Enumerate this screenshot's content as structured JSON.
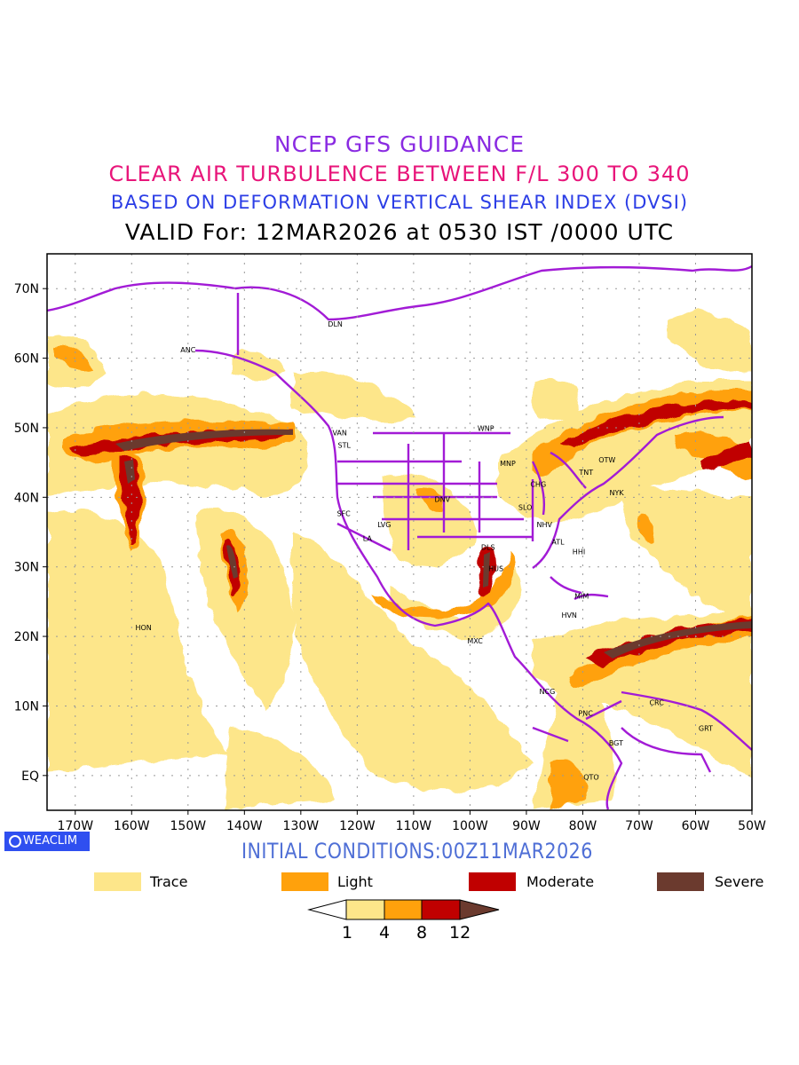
{
  "titles": {
    "line1": "NCEP GFS GUIDANCE",
    "line2": "CLEAR AIR TURBULENCE BETWEEN F/L 300 TO 340",
    "line3": "BASED ON DEFORMATION VERTICAL SHEAR INDEX (DVSI)",
    "line4": "VALID For: 12MAR2026 at 0530 IST /0000 UTC"
  },
  "colors": {
    "title1": "#8a2be2",
    "title2": "#e8157a",
    "title3": "#2c3ee6",
    "init": "#4f6fd6",
    "badge": "#2f4ff0",
    "coast": "#a21bd6",
    "trace": "#fde68a",
    "light": "#ffa10c",
    "moderate": "#c00000",
    "severe": "#6b3a2e"
  },
  "map": {
    "lat_labels": [
      "70N",
      "60N",
      "50N",
      "40N",
      "30N",
      "20N",
      "10N",
      "EQ"
    ],
    "lat_values": [
      70,
      60,
      50,
      40,
      30,
      20,
      10,
      0
    ],
    "lon_labels": [
      "170W",
      "160W",
      "150W",
      "140W",
      "130W",
      "120W",
      "110W",
      "100W",
      "90W",
      "80W",
      "70W",
      "60W",
      "50W"
    ],
    "lon_values": [
      -170,
      -160,
      -150,
      -140,
      -130,
      -120,
      -110,
      -100,
      -90,
      -80,
      -70,
      -60,
      -50
    ],
    "lon_range": [
      -175,
      -50
    ],
    "lat_range": [
      -5,
      75
    ],
    "grid": true,
    "stations": [
      {
        "code": "DLN",
        "lon": -123.9,
        "lat": 64.9
      },
      {
        "code": "ANC",
        "lon": -150,
        "lat": 61.2
      },
      {
        "code": "VAN",
        "lon": -123.1,
        "lat": 49.3
      },
      {
        "code": "STL",
        "lon": -122.3,
        "lat": 47.5
      },
      {
        "code": "WNP",
        "lon": -97.2,
        "lat": 49.9
      },
      {
        "code": "MNP",
        "lon": -93.3,
        "lat": 44.9
      },
      {
        "code": "TNT",
        "lon": -79.4,
        "lat": 43.6
      },
      {
        "code": "OTW",
        "lon": -75.7,
        "lat": 45.4
      },
      {
        "code": "CHG",
        "lon": -87.9,
        "lat": 41.9
      },
      {
        "code": "NYK",
        "lon": -74,
        "lat": 40.7
      },
      {
        "code": "DNV",
        "lon": -104.9,
        "lat": 39.7
      },
      {
        "code": "SFC",
        "lon": -122.4,
        "lat": 37.7
      },
      {
        "code": "LVG",
        "lon": -115.2,
        "lat": 36.1
      },
      {
        "code": "SLO",
        "lon": -90.2,
        "lat": 38.6
      },
      {
        "code": "NHV",
        "lon": -86.8,
        "lat": 36.1
      },
      {
        "code": "LA",
        "lon": -118.2,
        "lat": 34.1
      },
      {
        "code": "ATL",
        "lon": -84.4,
        "lat": 33.6
      },
      {
        "code": "DLS",
        "lon": -96.8,
        "lat": 32.8
      },
      {
        "code": "HHI",
        "lon": -80.7,
        "lat": 32.2
      },
      {
        "code": "HUS",
        "lon": -95.4,
        "lat": 29.8
      },
      {
        "code": "MIM",
        "lon": -80.2,
        "lat": 25.8
      },
      {
        "code": "HVN",
        "lon": -82.4,
        "lat": 23.1
      },
      {
        "code": "HON",
        "lon": -157.9,
        "lat": 21.3
      },
      {
        "code": "MXC",
        "lon": -99.1,
        "lat": 19.4
      },
      {
        "code": "NCG",
        "lon": -86.3,
        "lat": 12.1
      },
      {
        "code": "CRC",
        "lon": -66.9,
        "lat": 10.5
      },
      {
        "code": "PNC",
        "lon": -79.5,
        "lat": 9
      },
      {
        "code": "GRT",
        "lon": -58.2,
        "lat": 6.8
      },
      {
        "code": "BGT",
        "lon": -74.1,
        "lat": 4.7
      },
      {
        "code": "QTO",
        "lon": -78.5,
        "lat": -0.2
      }
    ]
  },
  "badge": {
    "label": "WEACLIM",
    "icon": "ring-logo-icon"
  },
  "initial": "INITIAL CONDITIONS:00Z11MAR2026",
  "legend": [
    {
      "label": "Trace",
      "color": "#fde68a"
    },
    {
      "label": "Light",
      "color": "#ffa10c"
    },
    {
      "label": "Moderate",
      "color": "#c00000"
    },
    {
      "label": "Severe",
      "color": "#6b3a2e"
    }
  ],
  "colorbar": {
    "ticks": [
      "1",
      "4",
      "8",
      "12"
    ],
    "colors": [
      "#ffffff",
      "#fde68a",
      "#ffa10c",
      "#c00000",
      "#6b3a2e"
    ]
  }
}
